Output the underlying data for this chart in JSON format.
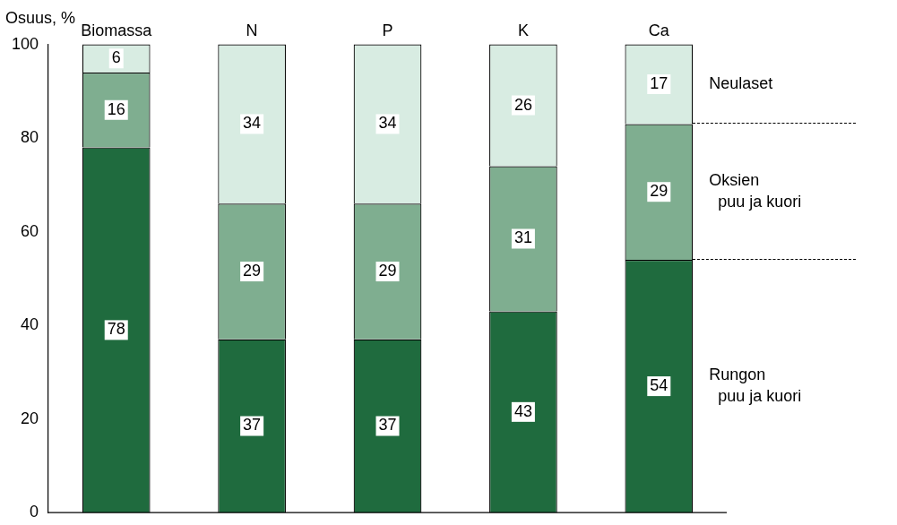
{
  "chart_data": {
    "type": "bar",
    "stacked": true,
    "ylabel": "Osuus, %",
    "categories": [
      "Biomassa",
      "N",
      "P",
      "K",
      "Ca"
    ],
    "series": [
      {
        "name": "Rungon puu ja kuori",
        "color": "#1f6b3e",
        "values": [
          78,
          37,
          37,
          43,
          54
        ]
      },
      {
        "name": "Oksien puu ja kuori",
        "color": "#7fae90",
        "values": [
          16,
          29,
          29,
          31,
          29
        ]
      },
      {
        "name": "Neulaset",
        "color": "#d8ece2",
        "values": [
          6,
          34,
          34,
          26,
          17
        ]
      }
    ],
    "ylim": [
      0,
      100
    ],
    "yticks": [
      0,
      20,
      40,
      60,
      80,
      100
    ],
    "grid": false,
    "legend": false,
    "data_labels": true
  }
}
